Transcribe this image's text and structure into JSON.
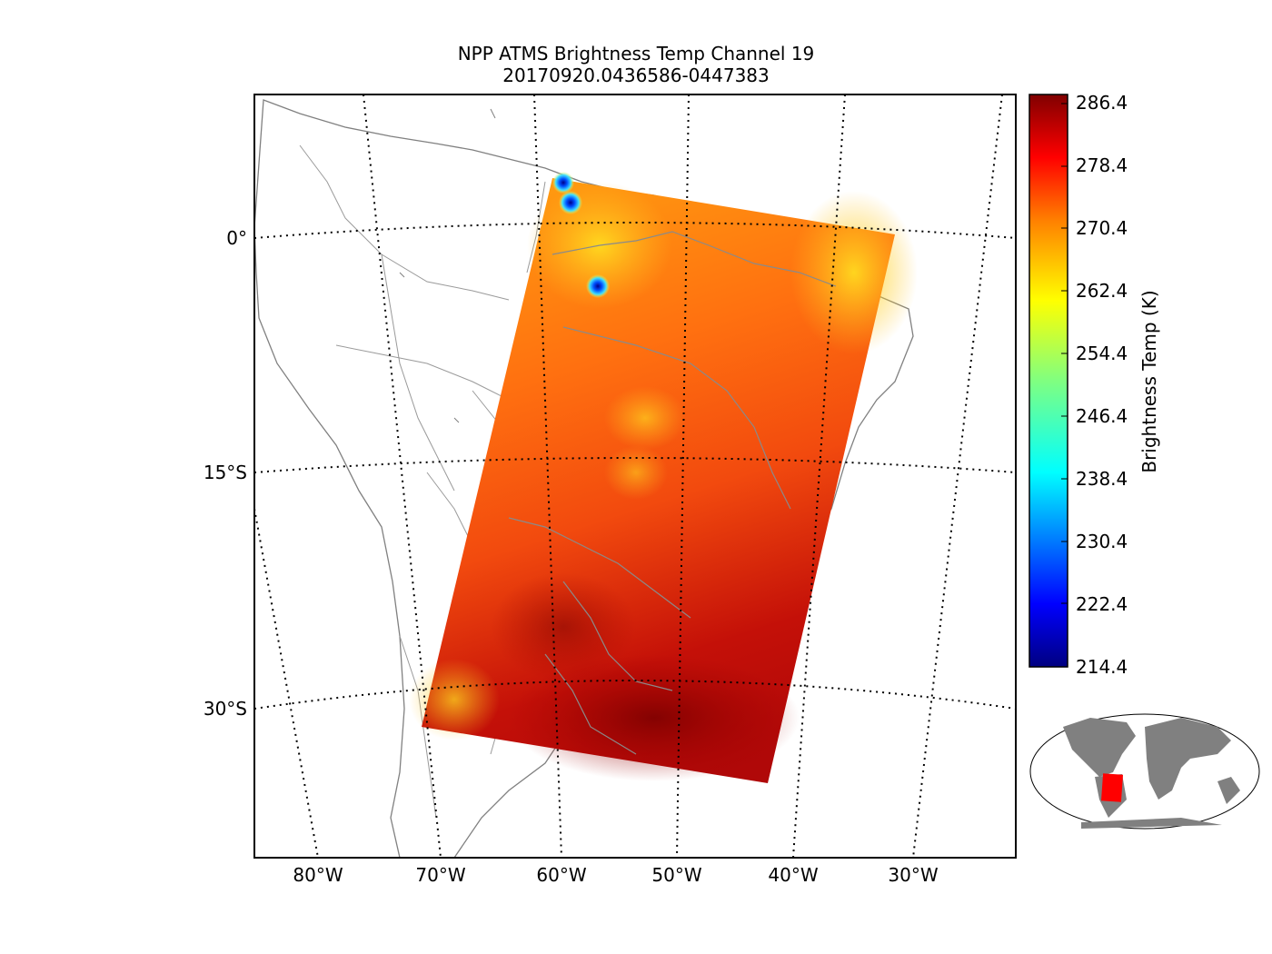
{
  "title": {
    "line1": "NPP ATMS Brightness Temp Channel 19",
    "line2": "20170920.0436586-0447383"
  },
  "latitude_labels": [
    "0°",
    "15°S",
    "30°S"
  ],
  "longitude_labels": [
    "80°W",
    "70°W",
    "60°W",
    "50°W",
    "40°W",
    "30°W"
  ],
  "colorbar": {
    "label": "Brightness Temp (K)",
    "ticks": [
      "286.4",
      "278.4",
      "270.4",
      "262.4",
      "254.4",
      "246.4",
      "238.4",
      "230.4",
      "222.4",
      "214.4"
    ],
    "min": 214.4,
    "max": 286.4,
    "colormap": "jet",
    "colors": [
      "#000080",
      "#0000ff",
      "#0080ff",
      "#00ffff",
      "#80ff80",
      "#ffff00",
      "#ff8000",
      "#ff0000",
      "#800000"
    ]
  },
  "swath": {
    "instrument": "NPP ATMS",
    "channel": 19,
    "dominant_range_k": [
      262,
      286
    ],
    "cold_spots": [
      "blue-spot-north-1",
      "blue-spot-north-2",
      "blue-spot-amazon"
    ]
  },
  "inset": {
    "description_color_land": "#808080",
    "swath_color": "#ff0000"
  }
}
